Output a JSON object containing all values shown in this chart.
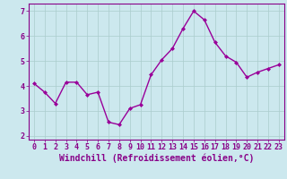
{
  "x": [
    0,
    1,
    2,
    3,
    4,
    5,
    6,
    7,
    8,
    9,
    10,
    11,
    12,
    13,
    14,
    15,
    16,
    17,
    18,
    19,
    20,
    21,
    22,
    23
  ],
  "y": [
    4.1,
    3.75,
    3.3,
    4.15,
    4.15,
    3.65,
    3.75,
    2.55,
    2.45,
    3.1,
    3.25,
    4.45,
    5.05,
    5.5,
    6.3,
    7.0,
    6.65,
    5.75,
    5.2,
    4.95,
    4.35,
    4.55,
    4.7,
    4.85
  ],
  "line_color": "#990099",
  "marker": "D",
  "marker_size": 2.0,
  "bg_color": "#cce8ee",
  "grid_color": "#aacccc",
  "xlabel": "Windchill (Refroidissement éolien,°C)",
  "xlim": [
    -0.5,
    23.5
  ],
  "ylim": [
    1.85,
    7.3
  ],
  "yticks": [
    2,
    3,
    4,
    5,
    6,
    7
  ],
  "xticks": [
    0,
    1,
    2,
    3,
    4,
    5,
    6,
    7,
    8,
    9,
    10,
    11,
    12,
    13,
    14,
    15,
    16,
    17,
    18,
    19,
    20,
    21,
    22,
    23
  ],
  "tick_fontsize": 6.0,
  "xlabel_fontsize": 7.0,
  "spine_color": "#880088",
  "linewidth": 1.0
}
